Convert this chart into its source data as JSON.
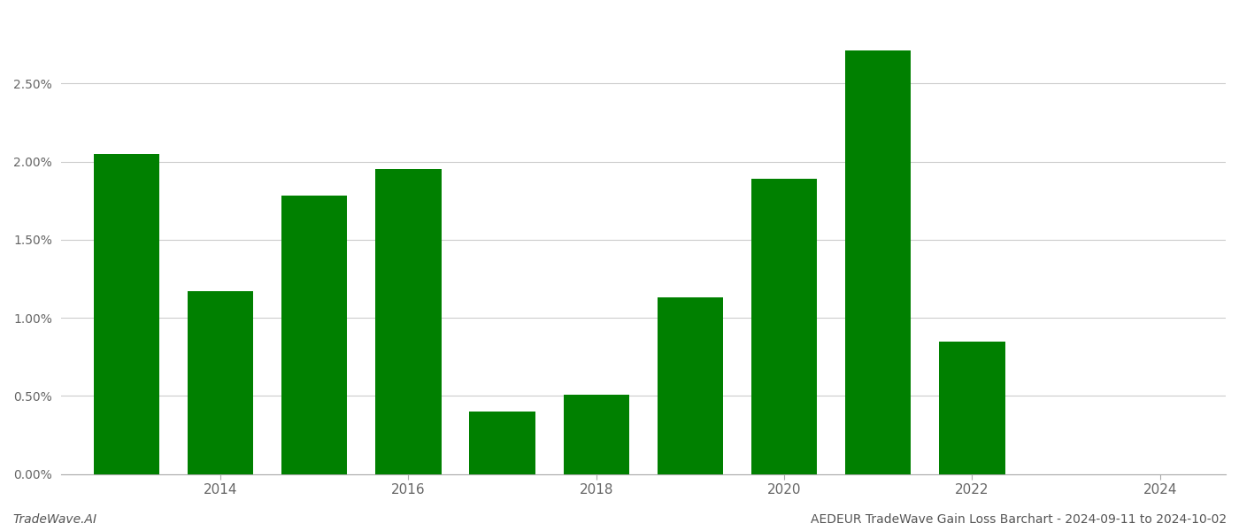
{
  "years": [
    2013,
    2014,
    2015,
    2016,
    2017,
    2018,
    2019,
    2020,
    2021,
    2022,
    2023
  ],
  "values": [
    0.0205,
    0.0117,
    0.0178,
    0.0195,
    0.004,
    0.0051,
    0.0113,
    0.0189,
    0.0271,
    0.0085,
    0.0
  ],
  "bar_color": "#008000",
  "title": "AEDEUR TradeWave Gain Loss Barchart - 2024-09-11 to 2024-10-02",
  "watermark": "TradeWave.AI",
  "xtick_positions": [
    2014,
    2016,
    2018,
    2020,
    2022,
    2024
  ],
  "xtick_labels": [
    "2014",
    "2016",
    "2018",
    "2020",
    "2022",
    "2024"
  ],
  "ylim": [
    0,
    0.0295
  ],
  "background_color": "#ffffff",
  "grid_color": "#cccccc",
  "ytick_step": 0.005
}
